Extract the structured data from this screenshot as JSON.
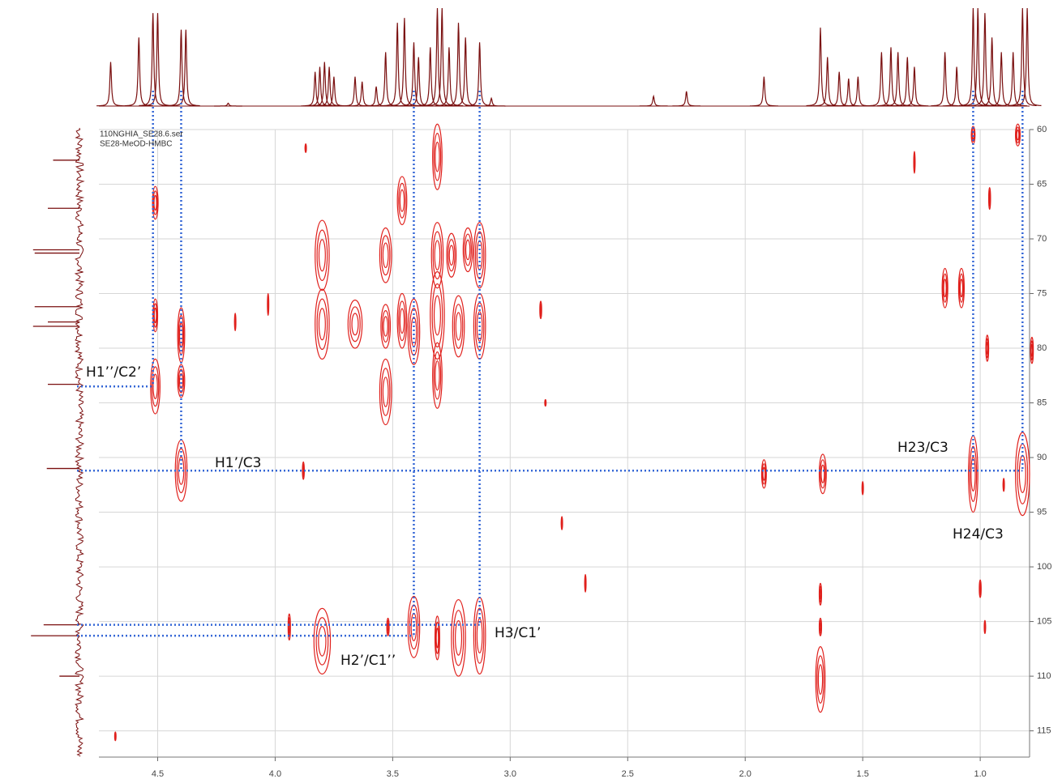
{
  "chart_data": {
    "type": "contour",
    "header_lines": [
      "110NGHIA_SE28.6.ser",
      "SE28-MeOD-HMBC"
    ],
    "xlim": [
      4.75,
      0.79
    ],
    "ylim": [
      60,
      117.4
    ],
    "xticks": [
      4.5,
      {
        "value": 4,
        "label": "4.0"
      },
      3.5,
      {
        "value": 3,
        "label": "3.0"
      },
      2.5,
      {
        "value": 2,
        "label": "2.0"
      },
      1.5,
      {
        "value": 1,
        "label": "1.0"
      }
    ],
    "yticks": [
      60,
      65,
      70,
      75,
      80,
      85,
      90,
      95,
      100,
      105,
      110,
      115
    ],
    "grid": true,
    "color": "#e0201c",
    "projection_color": "#7a0f0f",
    "guide_color": "#3567d6",
    "peaks": {
      "x": [
        4.51,
        4.51,
        4.51,
        4.4,
        4.4,
        4.4,
        3.8,
        3.8,
        3.8,
        3.66,
        3.53,
        3.53,
        3.53,
        3.46,
        3.46,
        3.41,
        3.41,
        3.31,
        3.31,
        3.31,
        3.31,
        3.31,
        3.25,
        3.22,
        3.22,
        3.18,
        3.13,
        3.13,
        3.13,
        1.92,
        1.67,
        1.68,
        1.68,
        1.68,
        1.15,
        1.08,
        1.03,
        1.03,
        0.97,
        0.82,
        0.84,
        0.78,
        3.94,
        3.88,
        4.17,
        4.03,
        2.78,
        2.68,
        2.87,
        1.28,
        0.96,
        4.68,
        3.52,
        3.87,
        1.0,
        0.98,
        0.9,
        1.5,
        2.85
      ],
      "y": [
        66.7,
        77.0,
        83.5,
        78.8,
        83.0,
        91.2,
        71.5,
        77.8,
        106.8,
        77.8,
        71.5,
        78.0,
        84.0,
        66.5,
        77.5,
        78.5,
        105.5,
        62.5,
        71.5,
        77.0,
        82.5,
        106.5,
        71.5,
        78.0,
        106.5,
        71.0,
        71.5,
        78.0,
        106.3,
        91.5,
        91.5,
        110.3,
        105.5,
        102.5,
        74.5,
        74.5,
        91.5,
        60.5,
        80.0,
        91.5,
        60.5,
        80.2,
        105.5,
        91.2,
        77.6,
        76.0,
        96.0,
        101.5,
        76.5,
        63.0,
        66.3,
        115.5,
        105.5,
        61.7,
        102.0,
        105.5,
        92.5,
        92.8,
        85.0
      ],
      "dx": [
        0.012,
        0.01,
        0.02,
        0.015,
        0.015,
        0.025,
        0.03,
        0.03,
        0.035,
        0.03,
        0.025,
        0.02,
        0.025,
        0.02,
        0.02,
        0.025,
        0.025,
        0.02,
        0.025,
        0.03,
        0.02,
        0.01,
        0.02,
        0.025,
        0.03,
        0.02,
        0.025,
        0.025,
        0.025,
        0.01,
        0.015,
        0.02,
        0.005,
        0.005,
        0.012,
        0.012,
        0.02,
        0.008,
        0.006,
        0.03,
        0.01,
        0.006,
        0.005,
        0.004,
        0.003,
        0.003,
        0.003,
        0.003,
        0.004,
        0.003,
        0.004,
        0.003,
        0.005,
        0.003,
        0.004,
        0.003,
        0.003,
        0.003,
        0.003
      ],
      "dy": [
        1.5,
        1.5,
        2.5,
        2.5,
        1.5,
        2.8,
        3.2,
        3.2,
        3.0,
        2.2,
        2.5,
        2.0,
        3.0,
        2.2,
        2.5,
        3.0,
        2.8,
        3.0,
        3.0,
        4.0,
        3.0,
        2.0,
        2.0,
        2.8,
        3.5,
        2.0,
        3.0,
        3.0,
        3.5,
        1.3,
        1.8,
        3.0,
        0.8,
        1.0,
        1.8,
        1.8,
        3.5,
        0.8,
        1.2,
        3.8,
        1.0,
        1.2,
        1.2,
        0.8,
        0.8,
        1.0,
        0.6,
        0.8,
        0.8,
        1.0,
        1.0,
        0.4,
        0.8,
        0.4,
        0.8,
        0.6,
        0.6,
        0.6,
        0.3
      ]
    },
    "x_projection": {
      "x": [
        4.7,
        4.58,
        4.52,
        4.5,
        4.4,
        4.38,
        4.2,
        3.83,
        3.81,
        3.79,
        3.77,
        3.75,
        3.66,
        3.63,
        3.57,
        3.53,
        3.48,
        3.45,
        3.41,
        3.39,
        3.34,
        3.31,
        3.29,
        3.26,
        3.22,
        3.19,
        3.13,
        3.08,
        2.39,
        2.25,
        1.92,
        1.68,
        1.65,
        1.6,
        1.56,
        1.52,
        1.42,
        1.38,
        1.35,
        1.31,
        1.28,
        1.15,
        1.1,
        1.03,
        1.01,
        0.98,
        0.95,
        0.91,
        0.86,
        0.82,
        0.8
      ],
      "intensity": [
        45,
        70,
        95,
        95,
        78,
        78,
        3,
        35,
        40,
        45,
        40,
        30,
        30,
        25,
        20,
        55,
        85,
        90,
        65,
        50,
        60,
        100,
        100,
        60,
        85,
        70,
        65,
        8,
        10,
        15,
        30,
        80,
        50,
        35,
        28,
        30,
        55,
        60,
        55,
        50,
        40,
        55,
        40,
        100,
        100,
        95,
        70,
        55,
        55,
        100,
        100
      ]
    },
    "y_projection": {
      "y": [
        62.8,
        67.2,
        71.0,
        71.3,
        76.2,
        77.6,
        78.0,
        83.3,
        91.0,
        105.3,
        106.3,
        110.0
      ],
      "intensity": [
        50,
        60,
        88,
        85,
        85,
        60,
        88,
        60,
        62,
        68,
        92,
        38
      ]
    },
    "correlations": [
      {
        "label": "H1’’/C2’",
        "x": 4.52,
        "y": 83.5
      },
      {
        "label": "H1’/C3",
        "x": 4.4,
        "y": 91.2
      },
      {
        "label": "H23/C3",
        "x": 1.03,
        "y": 91.2
      },
      {
        "label": "H24/C3",
        "x": 0.82,
        "y": 91.2
      },
      {
        "label": "H3/C1’",
        "x": 3.13,
        "y": 105.3
      },
      {
        "label": "H2’/C1’’",
        "x": 3.41,
        "y": 106.3
      }
    ]
  }
}
